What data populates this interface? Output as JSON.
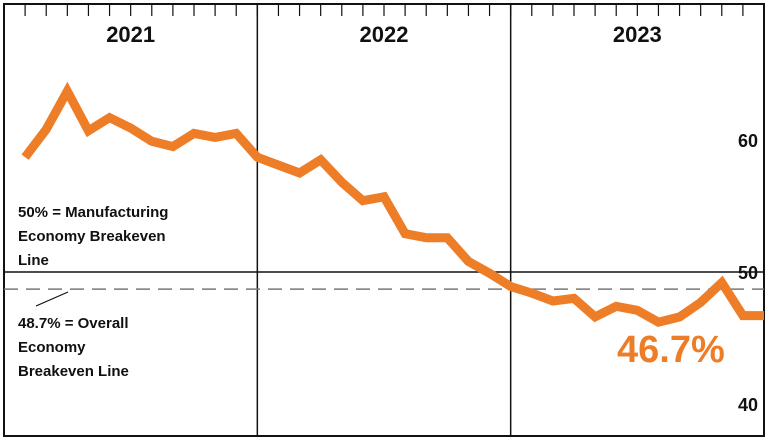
{
  "chart_data": {
    "type": "line",
    "title": "",
    "xlabel": "",
    "ylabel": "",
    "ylim": [
      40,
      64
    ],
    "yticks": [
      40,
      50,
      60
    ],
    "year_labels": [
      "2021",
      "2022",
      "2023"
    ],
    "x": [
      "2021-01",
      "2021-02",
      "2021-03",
      "2021-04",
      "2021-05",
      "2021-06",
      "2021-07",
      "2021-08",
      "2021-09",
      "2021-10",
      "2021-11",
      "2021-12",
      "2022-01",
      "2022-02",
      "2022-03",
      "2022-04",
      "2022-05",
      "2022-06",
      "2022-07",
      "2022-08",
      "2022-09",
      "2022-10",
      "2022-11",
      "2022-12",
      "2023-01",
      "2023-02",
      "2023-03",
      "2023-04",
      "2023-05",
      "2023-06",
      "2023-07",
      "2023-08",
      "2023-09",
      "2023-10",
      "2023-11",
      "2023-12"
    ],
    "series": [
      {
        "color": "#ee7d27",
        "values": [
          58.7,
          60.8,
          63.7,
          60.7,
          61.7,
          60.9,
          59.9,
          59.5,
          60.5,
          60.2,
          60.5,
          58.7,
          58.1,
          57.5,
          58.5,
          56.8,
          55.4,
          55.7,
          52.9,
          52.6,
          52.6,
          50.8,
          49.9,
          48.9,
          48.4,
          47.8,
          48.0,
          46.6,
          47.4,
          47.1,
          46.2,
          46.6,
          47.7,
          49.2,
          46.7,
          46.7
        ]
      }
    ],
    "reference_lines": [
      {
        "y": 50,
        "style": "solid",
        "label_lines": [
          "50% = Manufacturing",
          "Economy Breakeven",
          "Line"
        ]
      },
      {
        "y": 48.7,
        "style": "dashed",
        "label_lines": [
          "48.7% = Overall",
          "Economy",
          "Breakeven Line"
        ]
      }
    ],
    "last_value_label": "46.7%",
    "colors": {
      "line": "#ee7d27",
      "frame": "#111111",
      "dashed": "#777777"
    }
  }
}
